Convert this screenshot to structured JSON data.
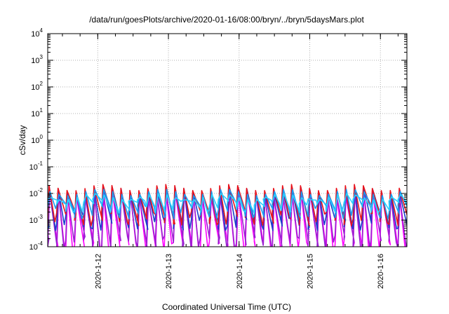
{
  "chart_data": {
    "type": "line",
    "title": "/data/run/goesPlots/archive/2020-01-16/08:00/bryn/../bryn/5daysMars.plot",
    "xlabel": "Coordinated Universal Time (UTC)",
    "ylabel": "cSv/day",
    "y_scale": "log",
    "ylim": [
      0.0001,
      10000
    ],
    "xlim": [
      "2020-01-11T07:00",
      "2020-01-16T09:00"
    ],
    "y_ticks": [
      {
        "value": 0.0001,
        "base": "10",
        "exp": "-4"
      },
      {
        "value": 0.001,
        "base": "10",
        "exp": "-3"
      },
      {
        "value": 0.01,
        "base": "10",
        "exp": "-2"
      },
      {
        "value": 0.1,
        "base": "10",
        "exp": "-1"
      },
      {
        "value": 1,
        "base": "10",
        "exp": "0"
      },
      {
        "value": 10,
        "base": "10",
        "exp": "1"
      },
      {
        "value": 100,
        "base": "10",
        "exp": "2"
      },
      {
        "value": 1000,
        "base": "10",
        "exp": "3"
      },
      {
        "value": 10000,
        "base": "10",
        "exp": "4"
      }
    ],
    "x_ticks": [
      {
        "value": "2020-01-12T00:00",
        "label": "2020-1-12"
      },
      {
        "value": "2020-01-13T00:00",
        "label": "2020-1-13"
      },
      {
        "value": "2020-01-14T00:00",
        "label": "2020-1-14"
      },
      {
        "value": "2020-01-15T00:00",
        "label": "2020-1-15"
      },
      {
        "value": "2020-01-16T00:00",
        "label": "2020-1-16"
      }
    ],
    "grid": true,
    "waveform": {
      "cycle_hours": 3.05,
      "phase_start": "2020-01-11T07:00",
      "note": "sawtooth cycles rising to peak then decaying"
    },
    "series": [
      {
        "color": "#ff00ff",
        "peak": 0.0085,
        "trough": 9e-05,
        "rise_fraction": 0.22
      },
      {
        "color": "#9a1fd0",
        "peak": 0.0095,
        "trough": 0.00015,
        "rise_fraction": 0.2
      },
      {
        "color": "#1a3fcc",
        "peak": 0.0135,
        "trough": 0.0008,
        "rise_fraction": 0.18
      },
      {
        "color": "#e8121c",
        "peak": 0.0165,
        "trough": 0.0012,
        "rise_fraction": 0.15
      },
      {
        "color": "#1a9cf0",
        "peak": 0.011,
        "trough": 0.0022,
        "rise_fraction": 0.25
      },
      {
        "color": "#2ad1ff",
        "peak": 0.0075,
        "trough": 0.0035,
        "rise_fraction": 0.3
      }
    ]
  }
}
